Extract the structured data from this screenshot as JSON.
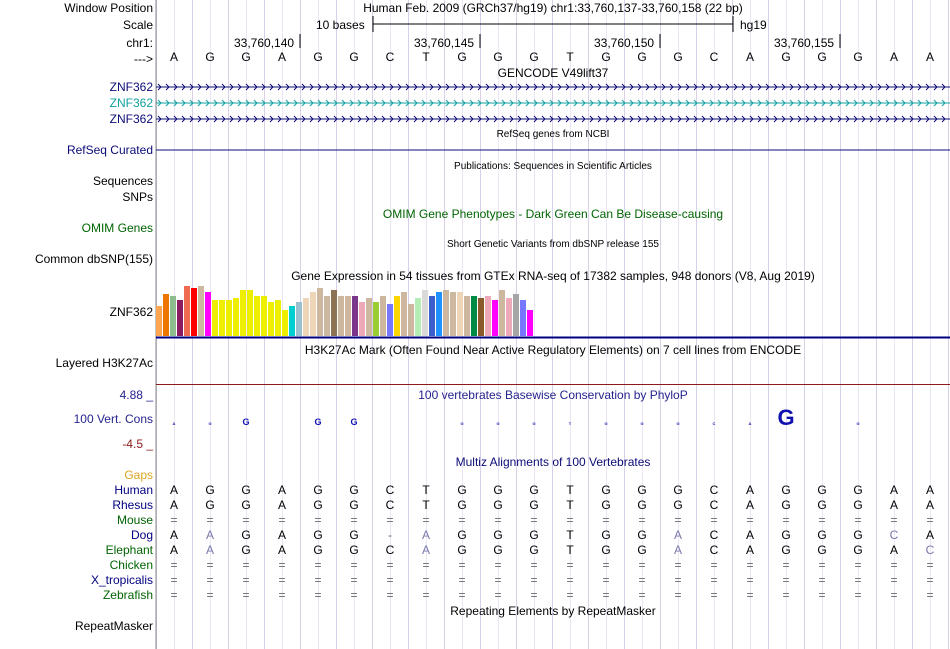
{
  "header": {
    "window_position_label": "Window Position",
    "scale_label": "Scale",
    "chrom_label": "chr1:",
    "strand_label": "--->",
    "assembly_text": "Human Feb. 2009 (GRCh37/hg19)   chr1:33,760,137-33,760,158 (22 bp)",
    "scale_text": "10 bases",
    "scale_db": "hg19",
    "coords": [
      "33,760,140",
      "33,760,145",
      "33,760,150",
      "33,760,155"
    ]
  },
  "bases": [
    "A",
    "G",
    "G",
    "A",
    "G",
    "G",
    "C",
    "T",
    "G",
    "G",
    "G",
    "T",
    "G",
    "G",
    "G",
    "C",
    "A",
    "G",
    "G",
    "G",
    "A",
    "A"
  ],
  "tracks": {
    "gencode_title": "GENCODE V49lift37",
    "gencode": [
      "ZNF362",
      "ZNF362",
      "ZNF362"
    ],
    "refseq_title": "RefSeq genes from NCBI",
    "refseq_label": "RefSeq Curated",
    "pubs_title": "Publications: Sequences in Scientific Articles",
    "pubs_labels": [
      "Sequences",
      "SNPs"
    ],
    "omim_title": "OMIM Gene Phenotypes - Dark Green Can Be Disease-causing",
    "omim_label": "OMIM Genes",
    "dbsnp_title": "Short Genetic Variants from dbSNP release 155",
    "dbsnp_label": "Common dbSNP(155)",
    "gtex_title": "Gene Expression in 54 tissues from GTEx RNA-seq of 17382 samples, 948 donors (V8, Aug 2019)",
    "gtex_label": "ZNF362",
    "h3k27_title": "H3K27Ac Mark (Often Found Near Active Regulatory Elements) on 7 cell lines from ENCODE",
    "h3k27_label": "Layered H3K27Ac",
    "cons_title": "100 vertebrates Basewise Conservation by PhyloP",
    "cons_label": "100 Vert. Cons",
    "cons_max": "4.88 _",
    "cons_min": "-4.5 _",
    "multiz_title": "Multiz Alignments of 100 Vertebrates",
    "gaps_label": "Gaps",
    "rmsk_title": "Repeating Elements by RepeatMasker",
    "rmsk_label": "RepeatMasker"
  },
  "alignments": [
    {
      "species": "Human",
      "color": "#000080",
      "row": [
        "A",
        "G",
        "G",
        "A",
        "G",
        "G",
        "C",
        "T",
        "G",
        "G",
        "G",
        "T",
        "G",
        "G",
        "G",
        "C",
        "A",
        "G",
        "G",
        "G",
        "A",
        "A"
      ]
    },
    {
      "species": "Rhesus",
      "color": "#000080",
      "row": [
        "A",
        "G",
        "G",
        "A",
        "G",
        "G",
        "C",
        "T",
        "G",
        "G",
        "G",
        "T",
        "G",
        "G",
        "G",
        "C",
        "A",
        "G",
        "G",
        "G",
        "A",
        "A"
      ]
    },
    {
      "species": "Mouse",
      "color": "#006400",
      "row": [
        "=",
        "=",
        "=",
        "=",
        "=",
        "=",
        "=",
        "=",
        "=",
        "=",
        "=",
        "=",
        "=",
        "=",
        "=",
        "=",
        "=",
        "=",
        "=",
        "=",
        "=",
        "="
      ]
    },
    {
      "species": "Dog",
      "color": "#000080",
      "row": [
        "A",
        "A",
        "G",
        "A",
        "G",
        "G",
        "-",
        "A",
        "G",
        "G",
        "G",
        "T",
        "G",
        "G",
        "A",
        "C",
        "A",
        "G",
        "G",
        "G",
        "C",
        "A"
      ]
    },
    {
      "species": "Elephant",
      "color": "#006400",
      "row": [
        "A",
        "A",
        "G",
        "A",
        "G",
        "G",
        "C",
        "A",
        "G",
        "G",
        "G",
        "T",
        "G",
        "G",
        "A",
        "C",
        "A",
        "G",
        "G",
        "G",
        "A",
        "C"
      ]
    },
    {
      "species": "Chicken",
      "color": "#006400",
      "row": [
        "=",
        "=",
        "=",
        "=",
        "=",
        "=",
        "=",
        "=",
        "=",
        "=",
        "=",
        "=",
        "=",
        "=",
        "=",
        "=",
        "=",
        "=",
        "=",
        "=",
        "=",
        "="
      ]
    },
    {
      "species": "X_tropicalis",
      "color": "#000080",
      "row": [
        "=",
        "=",
        "=",
        "=",
        "=",
        "=",
        "=",
        "=",
        "=",
        "=",
        "=",
        "=",
        "=",
        "=",
        "=",
        "=",
        "=",
        "=",
        "=",
        "=",
        "=",
        "="
      ]
    },
    {
      "species": "Zebrafish",
      "color": "#006400",
      "row": [
        "=",
        "=",
        "=",
        "=",
        "=",
        "=",
        "=",
        "=",
        "=",
        "=",
        "=",
        "=",
        "=",
        "=",
        "=",
        "=",
        "=",
        "=",
        "=",
        "=",
        "=",
        "="
      ]
    }
  ],
  "conservation": [
    0.1,
    0.4,
    0.9,
    0.0,
    0.9,
    0.9,
    0.0,
    0.0,
    0.3,
    0.2,
    0.1,
    0.2,
    0.3,
    0.1,
    0.4,
    0.4,
    0.1,
    2.2,
    0.0,
    0.2,
    0.0,
    0.0
  ],
  "gtex_values": [
    0.3,
    0.42,
    0.4,
    0.36,
    0.5,
    0.48,
    0.5,
    0.44,
    0.36,
    0.36,
    0.36,
    0.38,
    0.46,
    0.46,
    0.4,
    0.4,
    0.34,
    0.36,
    0.26,
    0.3,
    0.34,
    0.38,
    0.44,
    0.48,
    0.4,
    0.46,
    0.4,
    0.4,
    0.4,
    0.34,
    0.38,
    0.34,
    0.4,
    0.32,
    0.4,
    0.44,
    0.32,
    0.38,
    0.46,
    0.4,
    0.44,
    0.46,
    0.44,
    0.44,
    0.4,
    0.4,
    0.38,
    0.4,
    0.36,
    0.46,
    0.38,
    0.42,
    0.36,
    0.26
  ],
  "gtex_colors": [
    "#FFA54F",
    "#EE7600",
    "#8FBC8F",
    "#8B1C62",
    "#EE6A50",
    "#FF0000",
    "#CDB79E",
    "#FF00FF",
    "#EEEE00",
    "#EEEE00",
    "#EEEE00",
    "#EEEE00",
    "#EEEE00",
    "#EEEE00",
    "#EEEE00",
    "#EEEE00",
    "#EEEE00",
    "#EEEE00",
    "#EEEE00",
    "#00CED1",
    "#9AC0CD",
    "#EED5B7",
    "#EED5B7",
    "#CDB79E",
    "#CDB79E",
    "#8B7355",
    "#CDB79E",
    "#CDB79E",
    "#7A378B",
    "#EEA9B8",
    "#CDB79E",
    "#9ACD32",
    "#CDB79E",
    "#7777FF",
    "#FFD700",
    "#CDB79E",
    "#CDB79E",
    "#B4EEB4",
    "#D9D9D9",
    "#3A5FCD",
    "#1E90FF",
    "#CDB79E",
    "#CDB79E",
    "#EED5B7",
    "#CDB79E",
    "#008B45",
    "#8B5A2B",
    "#EEA9B8",
    "#FF00FF",
    "#CDB79E",
    "#EEA9B8",
    "#A6A6A6",
    "#7777FF",
    "#FF00FF"
  ],
  "gene_colors": {
    "blue": "#0C0C78",
    "teal": "#12A0A0",
    "navy": "#0C0C78"
  }
}
